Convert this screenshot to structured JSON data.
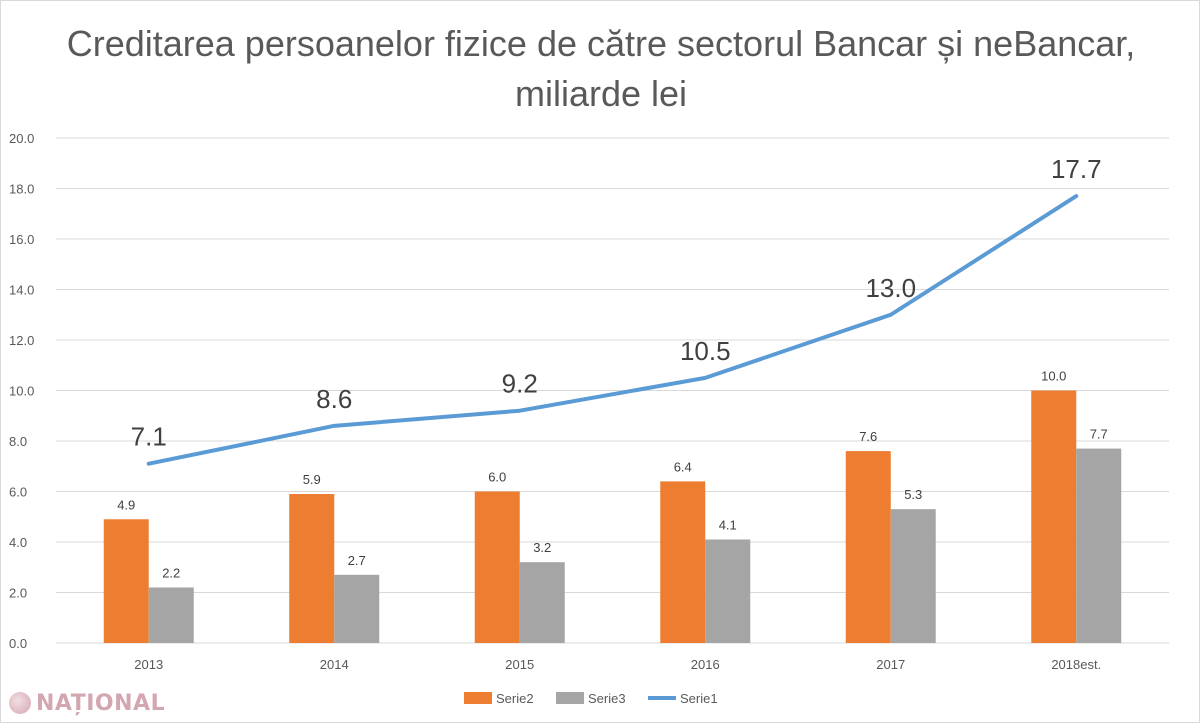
{
  "chart_data": {
    "type": "bar",
    "title": "Creditarea persoanelor fizice de către sectorul Bancar și neBancar, miliarde lei",
    "categories": [
      "2013",
      "2014",
      "2015",
      "2016",
      "2017",
      "2018est."
    ],
    "series": [
      {
        "name": "Serie2",
        "kind": "bar",
        "color": "#ED7D31",
        "values": [
          4.9,
          5.9,
          6.0,
          6.4,
          7.6,
          10.0
        ]
      },
      {
        "name": "Serie3",
        "kind": "bar",
        "color": "#A5A5A5",
        "values": [
          2.2,
          2.7,
          3.2,
          4.1,
          5.3,
          7.7
        ]
      },
      {
        "name": "Serie1",
        "kind": "line",
        "color": "#5B9BD5",
        "values": [
          7.1,
          8.6,
          9.2,
          10.5,
          13.0,
          17.7
        ]
      }
    ],
    "ylim": [
      0,
      20
    ],
    "yticks": [
      "0.0",
      "2.0",
      "4.0",
      "6.0",
      "8.0",
      "10.0",
      "12.0",
      "14.0",
      "16.0",
      "18.0",
      "20.0"
    ],
    "grid": true,
    "legend": "bottom",
    "xlabel": "",
    "ylabel": ""
  },
  "watermark": {
    "text": "NAȚIONAL",
    "icon": "national-logo-icon"
  }
}
